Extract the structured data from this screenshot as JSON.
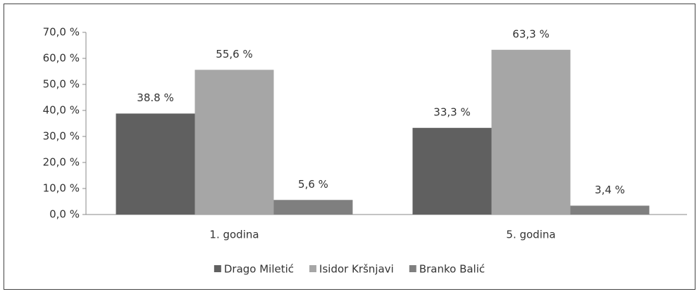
{
  "chart_data": {
    "type": "bar",
    "categories": [
      "1. godina",
      "5. godina"
    ],
    "series": [
      {
        "name": "Drago Miletić",
        "color": "#606060",
        "values": [
          38.8,
          33.3
        ],
        "value_labels": [
          "38.8 %",
          "33,3 %"
        ]
      },
      {
        "name": "Isidor Kršnjavi",
        "color": "#a6a6a6",
        "values": [
          55.6,
          63.3
        ],
        "value_labels": [
          "55,6 %",
          "63,3 %"
        ]
      },
      {
        "name": "Branko Balić",
        "color": "#7f7f7f",
        "values": [
          5.6,
          3.4
        ],
        "value_labels": [
          "5,6 %",
          "3,4 %"
        ]
      }
    ],
    "ylim": [
      0,
      70
    ],
    "yticks": [
      {
        "value": 0,
        "label": "0,0 %"
      },
      {
        "value": 10,
        "label": "10,0 %"
      },
      {
        "value": 20,
        "label": "20,0 %"
      },
      {
        "value": 30,
        "label": "30,0 %"
      },
      {
        "value": 40,
        "label": "40,0 %"
      },
      {
        "value": 50,
        "label": "50,0 %"
      },
      {
        "value": 60,
        "label": "60,0 %"
      },
      {
        "value": 70,
        "label": "70,0 %"
      }
    ],
    "grid": false,
    "legend": "bottom"
  }
}
